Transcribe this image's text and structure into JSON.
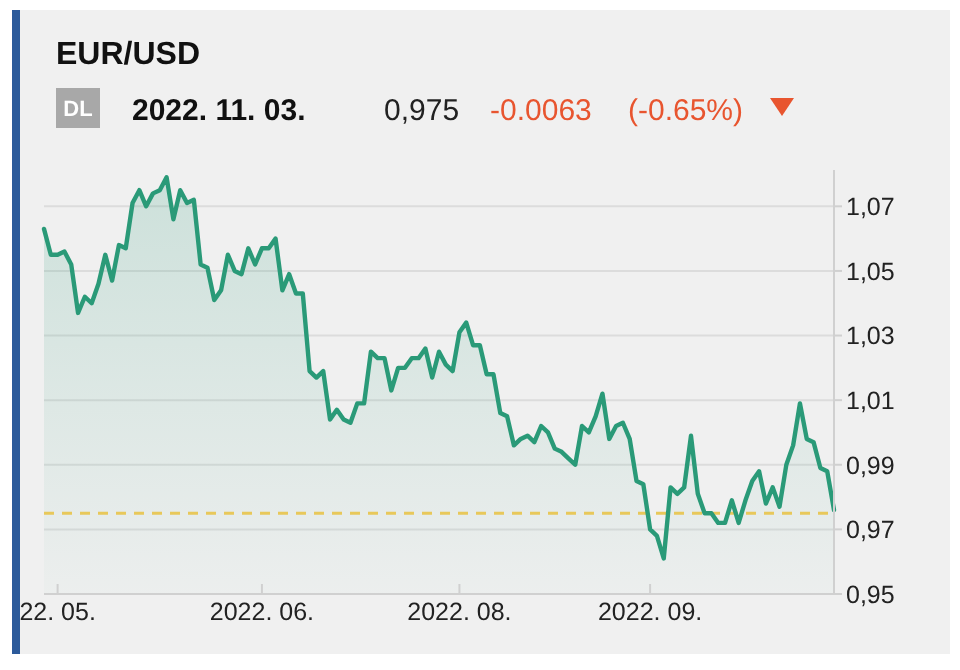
{
  "chart_data": {
    "type": "area",
    "title": "EUR/USD",
    "annotations": [
      "DL",
      "2022. 11. 03.",
      "0,975",
      "-0.0063",
      "(-0.65%)"
    ],
    "color": "#2a9a78",
    "categories": [
      null,
      null,
      "22. 05.",
      null,
      null,
      null,
      null,
      null,
      null,
      null,
      null,
      null,
      null,
      null,
      null,
      null,
      null,
      null,
      null,
      null,
      null,
      null,
      null,
      null,
      null,
      null,
      null,
      null,
      null,
      null,
      null,
      null,
      "2022. 06.",
      null,
      null,
      null,
      null,
      null,
      null,
      null,
      null,
      null,
      null,
      null,
      null,
      null,
      null,
      null,
      null,
      null,
      null,
      null,
      null,
      null,
      null,
      null,
      null,
      null,
      null,
      null,
      null,
      "2022. 08.",
      null,
      null,
      null,
      null,
      null,
      null,
      null,
      null,
      null,
      null,
      null,
      null,
      null,
      null,
      null,
      null,
      null,
      null,
      null,
      null,
      null,
      null,
      null,
      null,
      null,
      null,
      null,
      "2022. 09.",
      null,
      null,
      null,
      null,
      null,
      null,
      null,
      null,
      null,
      null,
      null,
      null,
      null,
      null,
      null,
      null,
      null,
      null,
      null,
      null,
      null,
      null,
      null,
      null,
      null,
      null,
      null
    ],
    "values": [
      1.063,
      1.055,
      1.055,
      1.056,
      1.052,
      1.037,
      1.042,
      1.04,
      1.046,
      1.055,
      1.047,
      1.058,
      1.057,
      1.071,
      1.075,
      1.07,
      1.074,
      1.075,
      1.079,
      1.066,
      1.075,
      1.071,
      1.072,
      1.052,
      1.051,
      1.041,
      1.044,
      1.055,
      1.05,
      1.049,
      1.057,
      1.052,
      1.057,
      1.057,
      1.06,
      1.044,
      1.049,
      1.043,
      1.043,
      1.019,
      1.017,
      1.019,
      1.004,
      1.007,
      1.004,
      1.003,
      1.009,
      1.009,
      1.025,
      1.023,
      1.023,
      1.013,
      1.02,
      1.02,
      1.023,
      1.023,
      1.026,
      1.017,
      1.025,
      1.021,
      1.019,
      1.031,
      1.034,
      1.027,
      1.027,
      1.018,
      1.018,
      1.006,
      1.005,
      0.996,
      0.998,
      0.999,
      0.997,
      1.002,
      1,
      0.995,
      0.994,
      0.992,
      0.99,
      1.002,
      1,
      1.005,
      1.012,
      0.998,
      1.002,
      1.003,
      0.998,
      0.985,
      0.984,
      0.97,
      0.968,
      0.961,
      0.983,
      0.981,
      0.983,
      0.999,
      0.981,
      0.975,
      0.975,
      0.972,
      0.972,
      0.979,
      0.972,
      0.979,
      0.985,
      0.988,
      0.978,
      0.983,
      0.977,
      0.99,
      0.996,
      1.009,
      0.998,
      0.997,
      0.989,
      0.988,
      0.976
    ],
    "ylim": [
      0.95,
      1.08
    ],
    "yticks": [
      {
        "value": 0.95,
        "label": "0,95"
      },
      {
        "value": 0.97,
        "label": "0,97"
      },
      {
        "value": 0.99,
        "label": "0,99"
      },
      {
        "value": 1.01,
        "label": "1,01"
      },
      {
        "value": 1.03,
        "label": "1,03"
      },
      {
        "value": 1.05,
        "label": "1,05"
      },
      {
        "value": 1.07,
        "label": "1,07"
      }
    ],
    "grid": "y",
    "ref_lines": [
      {
        "axis": "y",
        "value": 0.975,
        "color": "#e8c85a",
        "line_style": "dashed"
      }
    ]
  }
}
